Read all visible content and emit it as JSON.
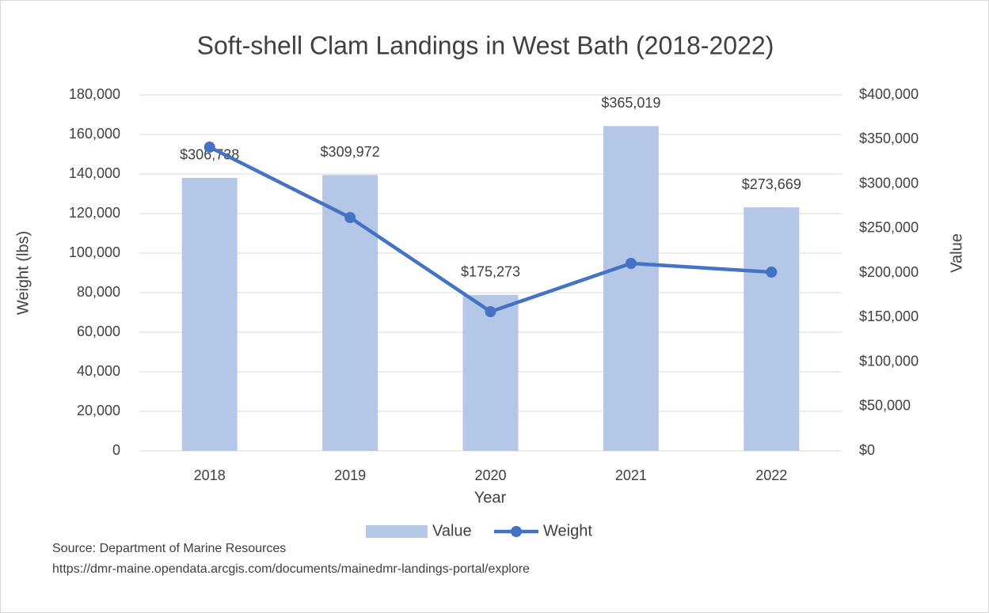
{
  "chart_data": {
    "type": "bar",
    "title": "Soft-shell Clam Landings in West Bath (2018-2022)",
    "x_label": "Year",
    "y_label": "Weight (lbs)",
    "y2_label": "Value",
    "categories": [
      "2018",
      "2019",
      "2020",
      "2021",
      "2022"
    ],
    "series": [
      {
        "name": "Value",
        "type": "bar",
        "axis": "y2",
        "color": "#b4c7e7",
        "values": [
          306738,
          309972,
          175273,
          365019,
          273669
        ],
        "value_labels": [
          "$306,738",
          "$309,972",
          "$175,273",
          "$365,019",
          "$273,669"
        ]
      },
      {
        "name": "Weight",
        "type": "line",
        "color": "#4472c4",
        "values": [
          153600,
          118000,
          70400,
          94800,
          90400
        ]
      }
    ],
    "ylim": [
      0,
      180000
    ],
    "yticks": [
      0,
      {
        "value": 20000,
        "label": "20,000"
      },
      {
        "value": 40000,
        "label": "40,000"
      },
      {
        "value": 60000,
        "label": "60,000"
      },
      {
        "value": 80000,
        "label": "80,000"
      },
      {
        "value": 100000,
        "label": "100,000"
      },
      {
        "value": 120000,
        "label": "120,000"
      },
      {
        "value": 140000,
        "label": "140,000"
      },
      {
        "value": 160000,
        "label": "160,000"
      },
      {
        "value": 180000,
        "label": "180,000"
      }
    ],
    "y2lim": [
      0,
      400000
    ],
    "y2ticks": [
      {
        "value": 0,
        "label": "$0"
      },
      {
        "value": 50000,
        "label": "$50,000"
      },
      {
        "value": 100000,
        "label": "$100,000"
      },
      {
        "value": 150000,
        "label": "$150,000"
      },
      {
        "value": 200000,
        "label": "$200,000"
      },
      {
        "value": 250000,
        "label": "$250,000"
      },
      {
        "value": 300000,
        "label": "$300,000"
      },
      {
        "value": 350000,
        "label": "$350,000"
      },
      {
        "value": 400000,
        "label": "$400,000"
      }
    ],
    "grid": true,
    "legend": "bottom",
    "annotations": [
      "Source: Department of Marine Resources",
      "https://dmr-maine.opendata.arcgis.com/documents/mainedmr-landings-portal/explore"
    ]
  }
}
